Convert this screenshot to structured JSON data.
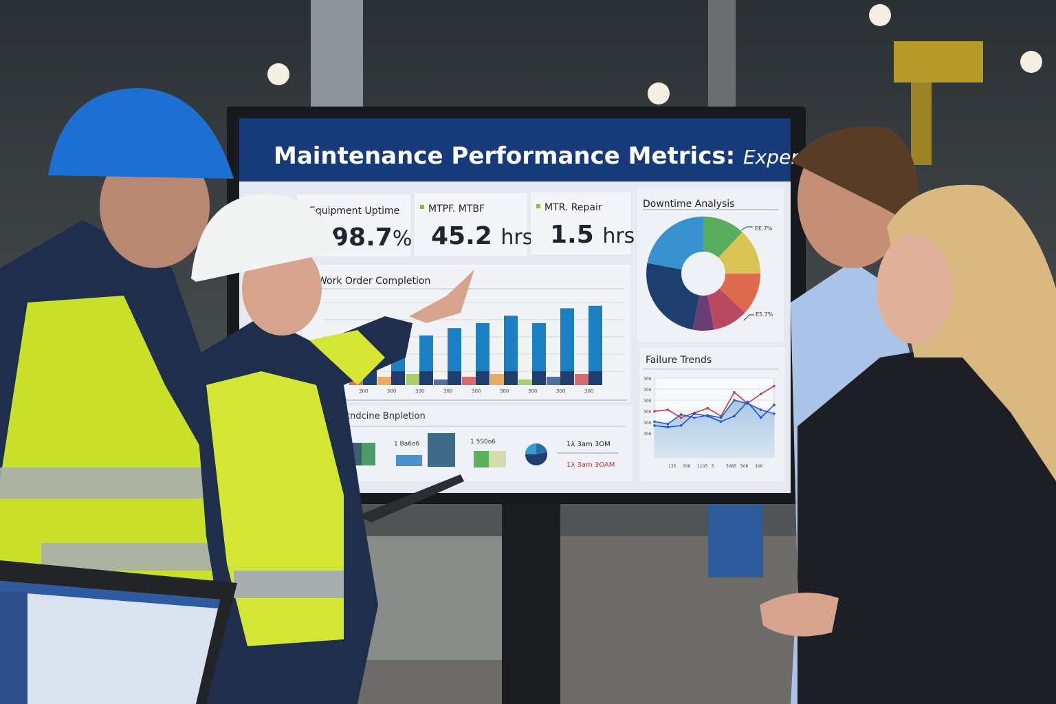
{
  "screen": {
    "title_bold": "Maintenance Performance Metrics:",
    "title_italic": "Expert Guide",
    "kpis": [
      {
        "label": "Equipment Uptime",
        "value": "98.7",
        "unit": "%"
      },
      {
        "label": "MTPF. MTBF",
        "value": "45.2",
        "unit": "hrs"
      },
      {
        "label": "MTR. Repair",
        "value": "1.5",
        "unit": "hrs"
      }
    ],
    "work_order": {
      "title": "Work Order Completion",
      "bar_values": [
        12,
        30,
        40,
        46,
        50,
        56,
        50,
        62,
        64
      ],
      "tick_label": "300"
    },
    "bottom_panel": {
      "title": "Dcndcine Bnpletion",
      "labels": [
        "1 Ba6o6",
        "1 5S0o6"
      ],
      "legend_top": "1λ 3am 3OM",
      "legend_bottom": "1λ 3am 3OAM"
    },
    "downtime": {
      "title": "Downtime Analysis",
      "label_top": "EE.7%",
      "label_bottom": "E5.7%",
      "slices": [
        {
          "value": 12,
          "color": "#5aad5e"
        },
        {
          "value": 13,
          "color": "#d8c452"
        },
        {
          "value": 12,
          "color": "#de6a4e"
        },
        {
          "value": 10,
          "color": "#b94a62"
        },
        {
          "value": 6,
          "color": "#6a3e74"
        },
        {
          "value": 25,
          "color": "#1e3f6e"
        },
        {
          "value": 22,
          "color": "#3892d0"
        }
      ]
    },
    "failure_trends": {
      "title": "Failure Trends",
      "y_ticks": [
        "300",
        "300",
        "300",
        "300",
        "300",
        "300"
      ],
      "x_ticks": [
        "135",
        "706",
        "1105",
        "5",
        "5085",
        "506",
        "306"
      ],
      "series_red": [
        58,
        60,
        50,
        56,
        62,
        52,
        82,
        68,
        80,
        90
      ],
      "series_blue": [
        40,
        38,
        40,
        55,
        52,
        45,
        52,
        70,
        50,
        66
      ],
      "series_navy": [
        45,
        42,
        54,
        50,
        53,
        50,
        72,
        68,
        60,
        55
      ]
    }
  },
  "colors": {
    "title_bar": "#163a7a",
    "screen_bg": "#e6eaf0",
    "bar_blue": "#1b7fc4",
    "hi_vis": "#c8e02a",
    "jacket_navy": "#1f2e4c"
  }
}
